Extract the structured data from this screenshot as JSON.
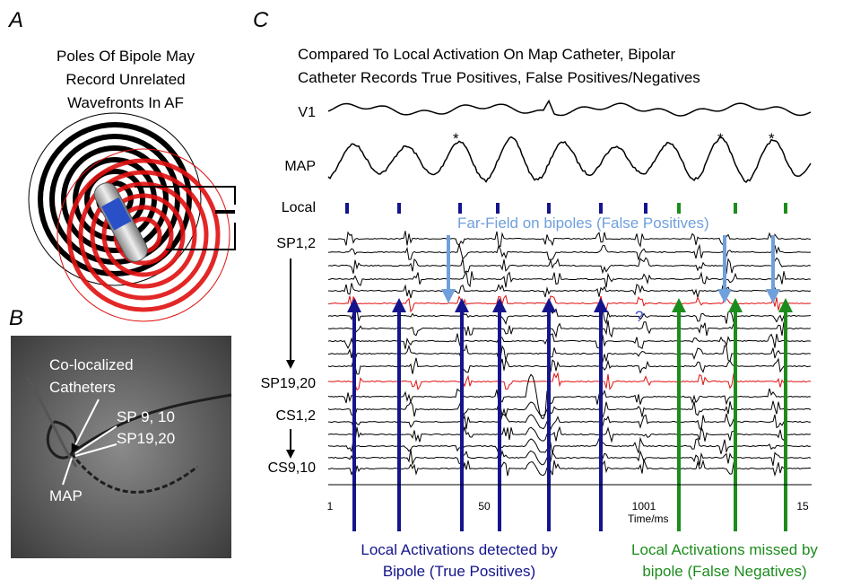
{
  "panel_a": {
    "label": "A",
    "caption": [
      "Poles Of Bipole May",
      "Record Unrelated",
      "Wavefronts In AF"
    ]
  },
  "panel_b": {
    "label": "B",
    "labels": [
      "Co-localized",
      "Catheters",
      "SP 9, 10",
      "SP19,20",
      "MAP"
    ]
  },
  "panel_c": {
    "label": "C",
    "title": [
      "Compared To Local Activation On Map Catheter, Bipolar",
      "Catheter Records True Positives, False Positives/Negatives"
    ],
    "channels": [
      "V1",
      "MAP",
      "Local",
      "SP1,2",
      "SP19,20",
      "CS1,2",
      "CS9,10"
    ],
    "far_field_note": "Far-Field on bipoles (False Positives)",
    "question_mark": "?",
    "asterisks": [
      "*",
      "*",
      "*"
    ],
    "axis_labels": [
      "1",
      "50",
      "1001",
      "Time/ms",
      "15"
    ],
    "true_positive_caption": [
      "Local Activations detected by",
      "Bipole (True Positives)"
    ],
    "false_negative_caption": [
      "Local Activations missed by",
      "bipole (False Negatives)"
    ]
  }
}
